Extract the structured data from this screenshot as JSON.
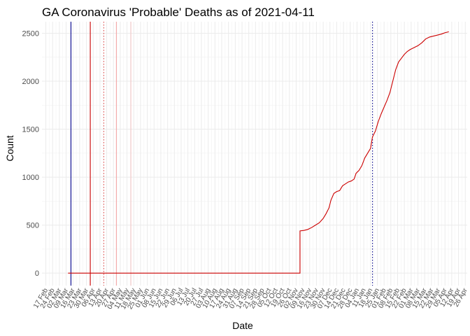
{
  "chart_data": {
    "type": "line",
    "title": "GA Coronavirus 'Probable' Deaths as of 2021-04-11",
    "xlabel": "Date",
    "ylabel": "Count",
    "xlim": [
      "2020-02-13",
      "2021-04-28"
    ],
    "ylim": [
      -130,
      2620
    ],
    "y_ticks": [
      0,
      500,
      1000,
      1500,
      2000,
      2500
    ],
    "grid": true,
    "x_ticks": [
      {
        "date": "2020-02-17",
        "label": "17 Feb"
      },
      {
        "date": "2020-02-24",
        "label": "24 Feb"
      },
      {
        "date": "2020-03-02",
        "label": "02 Mar"
      },
      {
        "date": "2020-03-09",
        "label": "09 Mar"
      },
      {
        "date": "2020-03-16",
        "label": "16 Mar"
      },
      {
        "date": "2020-03-23",
        "label": "23 Mar"
      },
      {
        "date": "2020-03-30",
        "label": "30 Mar"
      },
      {
        "date": "2020-04-06",
        "label": "06 Apr"
      },
      {
        "date": "2020-04-13",
        "label": "13 Apr"
      },
      {
        "date": "2020-04-20",
        "label": "20 Apr"
      },
      {
        "date": "2020-04-27",
        "label": "27 Apr"
      },
      {
        "date": "2020-05-04",
        "label": "04 May"
      },
      {
        "date": "2020-05-11",
        "label": "11 May"
      },
      {
        "date": "2020-05-18",
        "label": "18 May"
      },
      {
        "date": "2020-05-25",
        "label": "25 May"
      },
      {
        "date": "2020-06-01",
        "label": "01 Jun"
      },
      {
        "date": "2020-06-08",
        "label": "08 Jun"
      },
      {
        "date": "2020-06-15",
        "label": "15 Jun"
      },
      {
        "date": "2020-06-22",
        "label": "22 Jun"
      },
      {
        "date": "2020-06-29",
        "label": "29 Jun"
      },
      {
        "date": "2020-07-06",
        "label": "06 Jul"
      },
      {
        "date": "2020-07-13",
        "label": "13 Jul"
      },
      {
        "date": "2020-07-20",
        "label": "20 Jul"
      },
      {
        "date": "2020-07-27",
        "label": "27 Jul"
      },
      {
        "date": "2020-08-03",
        "label": "03 Aug"
      },
      {
        "date": "2020-08-10",
        "label": "10 Aug"
      },
      {
        "date": "2020-08-17",
        "label": "17 Aug"
      },
      {
        "date": "2020-08-24",
        "label": "24 Aug"
      },
      {
        "date": "2020-08-31",
        "label": "31 Aug"
      },
      {
        "date": "2020-09-07",
        "label": "07 Sep"
      },
      {
        "date": "2020-09-14",
        "label": "14 Sep"
      },
      {
        "date": "2020-09-21",
        "label": "21 Sep"
      },
      {
        "date": "2020-09-28",
        "label": "28 Sep"
      },
      {
        "date": "2020-10-05",
        "label": "05 Oct"
      },
      {
        "date": "2020-10-12",
        "label": "12 Oct"
      },
      {
        "date": "2020-10-19",
        "label": "19 Oct"
      },
      {
        "date": "2020-10-26",
        "label": "26 Oct"
      },
      {
        "date": "2020-11-02",
        "label": "02 Nov"
      },
      {
        "date": "2020-11-09",
        "label": "09 Nov"
      },
      {
        "date": "2020-11-16",
        "label": "16 Nov"
      },
      {
        "date": "2020-11-23",
        "label": "23 Nov"
      },
      {
        "date": "2020-11-30",
        "label": "30 Nov"
      },
      {
        "date": "2020-12-07",
        "label": "07 Dec"
      },
      {
        "date": "2020-12-14",
        "label": "14 Dec"
      },
      {
        "date": "2020-12-21",
        "label": "21 Dec"
      },
      {
        "date": "2020-12-28",
        "label": "28 Dec"
      },
      {
        "date": "2021-01-04",
        "label": "04 Jan"
      },
      {
        "date": "2021-01-11",
        "label": "11 Jan"
      },
      {
        "date": "2021-01-18",
        "label": "18 Jan"
      },
      {
        "date": "2021-01-25",
        "label": "25 Jan"
      },
      {
        "date": "2021-02-01",
        "label": "01 Feb"
      },
      {
        "date": "2021-02-08",
        "label": "08 Feb"
      },
      {
        "date": "2021-02-15",
        "label": "15 Feb"
      },
      {
        "date": "2021-02-22",
        "label": "22 Feb"
      },
      {
        "date": "2021-03-01",
        "label": "01 Mar"
      },
      {
        "date": "2021-03-08",
        "label": "08 Mar"
      },
      {
        "date": "2021-03-15",
        "label": "15 Mar"
      },
      {
        "date": "2021-03-22",
        "label": "22 Mar"
      },
      {
        "date": "2021-03-29",
        "label": "29 Mar"
      },
      {
        "date": "2021-04-05",
        "label": "05 Apr"
      },
      {
        "date": "2021-04-12",
        "label": "12 Apr"
      },
      {
        "date": "2021-04-19",
        "label": "19 Apr"
      },
      {
        "date": "2021-04-26",
        "label": "26 Apr"
      }
    ],
    "vlines": [
      {
        "date": "2020-03-14",
        "color": "#00008b",
        "dash": "solid"
      },
      {
        "date": "2020-04-03",
        "color": "#cc0000",
        "dash": "solid"
      },
      {
        "date": "2020-04-17",
        "color": "#e05050",
        "dash": "dotted"
      },
      {
        "date": "2020-04-30",
        "color": "#f4a6a6",
        "dash": "solid"
      },
      {
        "date": "2020-05-15",
        "color": "#f4c7c7",
        "dash": "solid"
      },
      {
        "date": "2021-01-20",
        "color": "#00008b",
        "dash": "dotted"
      }
    ],
    "series": [
      {
        "color": "#cc0000",
        "points": [
          [
            "2020-03-11",
            0
          ],
          [
            "2020-11-06",
            0
          ],
          [
            "2020-11-06",
            440
          ],
          [
            "2020-11-10",
            445
          ],
          [
            "2020-11-14",
            455
          ],
          [
            "2020-11-18",
            475
          ],
          [
            "2020-11-22",
            500
          ],
          [
            "2020-11-26",
            525
          ],
          [
            "2020-11-30",
            570
          ],
          [
            "2020-12-03",
            620
          ],
          [
            "2020-12-06",
            680
          ],
          [
            "2020-12-08",
            760
          ],
          [
            "2020-12-11",
            830
          ],
          [
            "2020-12-14",
            850
          ],
          [
            "2020-12-17",
            860
          ],
          [
            "2020-12-20",
            910
          ],
          [
            "2020-12-23",
            930
          ],
          [
            "2020-12-26",
            950
          ],
          [
            "2020-12-29",
            960
          ],
          [
            "2021-01-01",
            980
          ],
          [
            "2021-01-03",
            1040
          ],
          [
            "2021-01-06",
            1070
          ],
          [
            "2021-01-09",
            1120
          ],
          [
            "2021-01-12",
            1200
          ],
          [
            "2021-01-15",
            1250
          ],
          [
            "2021-01-18",
            1300
          ],
          [
            "2021-01-20",
            1420
          ],
          [
            "2021-01-23",
            1480
          ],
          [
            "2021-01-26",
            1580
          ],
          [
            "2021-01-29",
            1660
          ],
          [
            "2021-02-01",
            1730
          ],
          [
            "2021-02-04",
            1800
          ],
          [
            "2021-02-07",
            1880
          ],
          [
            "2021-02-10",
            2000
          ],
          [
            "2021-02-13",
            2120
          ],
          [
            "2021-02-16",
            2200
          ],
          [
            "2021-02-19",
            2240
          ],
          [
            "2021-02-22",
            2280
          ],
          [
            "2021-02-25",
            2310
          ],
          [
            "2021-02-28",
            2330
          ],
          [
            "2021-03-04",
            2350
          ],
          [
            "2021-03-08",
            2370
          ],
          [
            "2021-03-12",
            2400
          ],
          [
            "2021-03-16",
            2440
          ],
          [
            "2021-03-20",
            2460
          ],
          [
            "2021-03-24",
            2470
          ],
          [
            "2021-03-28",
            2480
          ],
          [
            "2021-04-01",
            2490
          ],
          [
            "2021-04-05",
            2505
          ],
          [
            "2021-04-09",
            2515
          ]
        ]
      }
    ]
  }
}
